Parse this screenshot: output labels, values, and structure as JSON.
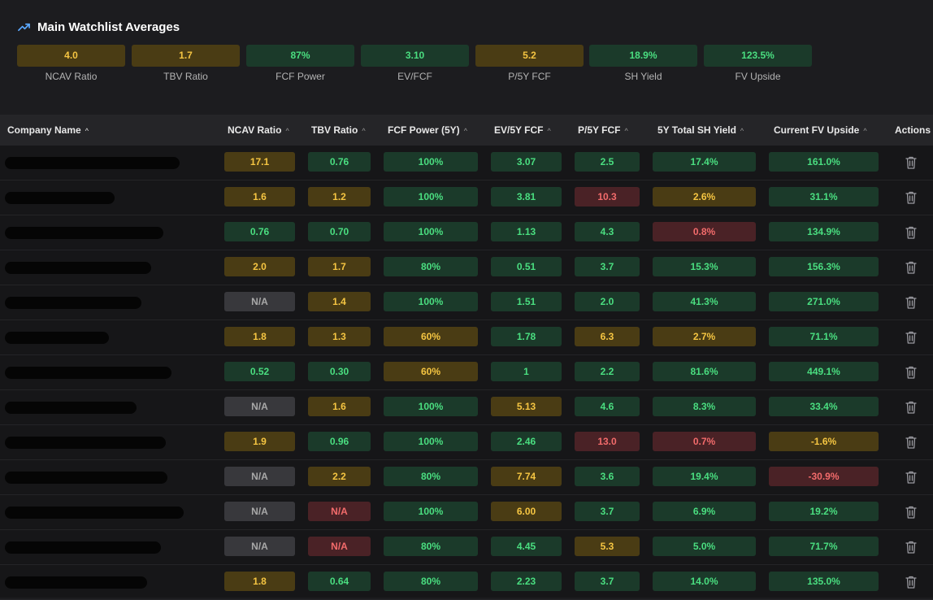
{
  "summary": {
    "title": "Main Watchlist Averages",
    "icon": "trending-up-icon",
    "metrics": [
      {
        "value": "4.0",
        "label": "NCAV Ratio",
        "status": "yellow"
      },
      {
        "value": "1.7",
        "label": "TBV Ratio",
        "status": "yellow"
      },
      {
        "value": "87%",
        "label": "FCF Power",
        "status": "green"
      },
      {
        "value": "3.10",
        "label": "EV/FCF",
        "status": "green"
      },
      {
        "value": "5.2",
        "label": "P/5Y FCF",
        "status": "yellow"
      },
      {
        "value": "18.9%",
        "label": "SH Yield",
        "status": "green"
      },
      {
        "value": "123.5%",
        "label": "FV Upside",
        "status": "green"
      }
    ]
  },
  "table": {
    "columns": [
      {
        "label": "Company Name",
        "sort": "asc"
      },
      {
        "label": "NCAV Ratio",
        "sort": "none"
      },
      {
        "label": "TBV Ratio",
        "sort": "none"
      },
      {
        "label": "FCF Power (5Y)",
        "sort": "none"
      },
      {
        "label": "EV/5Y FCF",
        "sort": "none"
      },
      {
        "label": "P/5Y FCF",
        "sort": "none"
      },
      {
        "label": "5Y Total SH Yield",
        "sort": "none"
      },
      {
        "label": "Current FV Upside",
        "sort": "none"
      },
      {
        "label": "Actions",
        "sort": null
      }
    ],
    "rows": [
      {
        "cells": [
          [
            "17.1",
            "yellow"
          ],
          [
            "0.76",
            "green"
          ],
          [
            "100%",
            "green"
          ],
          [
            "3.07",
            "green"
          ],
          [
            "2.5",
            "green"
          ],
          [
            "17.4%",
            "green"
          ],
          [
            "161.0%",
            "green"
          ]
        ]
      },
      {
        "cells": [
          [
            "1.6",
            "yellow"
          ],
          [
            "1.2",
            "yellow"
          ],
          [
            "100%",
            "green"
          ],
          [
            "3.81",
            "green"
          ],
          [
            "10.3",
            "red"
          ],
          [
            "2.6%",
            "yellow"
          ],
          [
            "31.1%",
            "green"
          ]
        ]
      },
      {
        "cells": [
          [
            "0.76",
            "green"
          ],
          [
            "0.70",
            "green"
          ],
          [
            "100%",
            "green"
          ],
          [
            "1.13",
            "green"
          ],
          [
            "4.3",
            "green"
          ],
          [
            "0.8%",
            "red"
          ],
          [
            "134.9%",
            "green"
          ]
        ]
      },
      {
        "cells": [
          [
            "2.0",
            "yellow"
          ],
          [
            "1.7",
            "yellow"
          ],
          [
            "80%",
            "green"
          ],
          [
            "0.51",
            "green"
          ],
          [
            "3.7",
            "green"
          ],
          [
            "15.3%",
            "green"
          ],
          [
            "156.3%",
            "green"
          ]
        ]
      },
      {
        "cells": [
          [
            "N/A",
            "gray"
          ],
          [
            "1.4",
            "yellow"
          ],
          [
            "100%",
            "green"
          ],
          [
            "1.51",
            "green"
          ],
          [
            "2.0",
            "green"
          ],
          [
            "41.3%",
            "green"
          ],
          [
            "271.0%",
            "green"
          ]
        ]
      },
      {
        "cells": [
          [
            "1.8",
            "yellow"
          ],
          [
            "1.3",
            "yellow"
          ],
          [
            "60%",
            "yellow"
          ],
          [
            "1.78",
            "green"
          ],
          [
            "6.3",
            "yellow"
          ],
          [
            "2.7%",
            "yellow"
          ],
          [
            "71.1%",
            "green"
          ]
        ]
      },
      {
        "cells": [
          [
            "0.52",
            "green"
          ],
          [
            "0.30",
            "green"
          ],
          [
            "60%",
            "yellow"
          ],
          [
            "1",
            "green"
          ],
          [
            "2.2",
            "green"
          ],
          [
            "81.6%",
            "green"
          ],
          [
            "449.1%",
            "green"
          ]
        ]
      },
      {
        "cells": [
          [
            "N/A",
            "gray"
          ],
          [
            "1.6",
            "yellow"
          ],
          [
            "100%",
            "green"
          ],
          [
            "5.13",
            "yellow"
          ],
          [
            "4.6",
            "green"
          ],
          [
            "8.3%",
            "green"
          ],
          [
            "33.4%",
            "green"
          ]
        ]
      },
      {
        "cells": [
          [
            "1.9",
            "yellow"
          ],
          [
            "0.96",
            "green"
          ],
          [
            "100%",
            "green"
          ],
          [
            "2.46",
            "green"
          ],
          [
            "13.0",
            "red"
          ],
          [
            "0.7%",
            "red"
          ],
          [
            "-1.6%",
            "yellow"
          ]
        ]
      },
      {
        "cells": [
          [
            "N/A",
            "gray"
          ],
          [
            "2.2",
            "yellow"
          ],
          [
            "80%",
            "green"
          ],
          [
            "7.74",
            "yellow"
          ],
          [
            "3.6",
            "green"
          ],
          [
            "19.4%",
            "green"
          ],
          [
            "-30.9%",
            "red"
          ]
        ]
      },
      {
        "cells": [
          [
            "N/A",
            "gray"
          ],
          [
            "N/A",
            "red"
          ],
          [
            "100%",
            "green"
          ],
          [
            "6.00",
            "yellow"
          ],
          [
            "3.7",
            "green"
          ],
          [
            "6.9%",
            "green"
          ],
          [
            "19.2%",
            "green"
          ]
        ]
      },
      {
        "cells": [
          [
            "N/A",
            "gray"
          ],
          [
            "N/A",
            "red"
          ],
          [
            "80%",
            "green"
          ],
          [
            "4.45",
            "green"
          ],
          [
            "5.3",
            "yellow"
          ],
          [
            "5.0%",
            "green"
          ],
          [
            "71.7%",
            "green"
          ]
        ]
      },
      {
        "cells": [
          [
            "1.8",
            "yellow"
          ],
          [
            "0.64",
            "green"
          ],
          [
            "80%",
            "green"
          ],
          [
            "2.23",
            "green"
          ],
          [
            "3.7",
            "green"
          ],
          [
            "14.0%",
            "green"
          ],
          [
            "135.0%",
            "green"
          ]
        ]
      }
    ],
    "action_icon": "trash-icon"
  }
}
